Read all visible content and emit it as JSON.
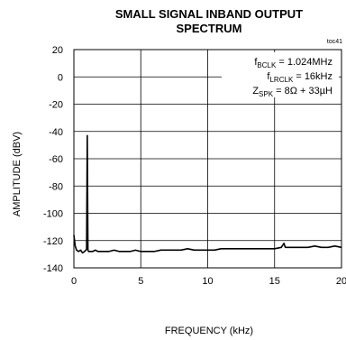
{
  "chart_data": {
    "type": "line",
    "title_line1": "SMALL SIGNAL INBAND OUTPUT",
    "title_line2": "SPECTRUM",
    "chart_id": "toc41",
    "xlabel": "FREQUENCY (kHz)",
    "ylabel": "AMPLITUDE (dBV)",
    "xlim": [
      0,
      20
    ],
    "ylim": [
      -140,
      20
    ],
    "x_ticks": [
      "0",
      "5",
      "10",
      "15",
      "20"
    ],
    "y_ticks": [
      "20",
      "0",
      "-20",
      "-40",
      "-60",
      "-80",
      "-100",
      "-120",
      "-140"
    ],
    "grid": true,
    "annotations": {
      "bclk_main": "f",
      "bclk_sub": "BCLK",
      "bclk_value": " = 1.024MHz",
      "lrclk_main": "f",
      "lrclk_sub": "LRCLK",
      "lrclk_value": " = 16kHz",
      "zspk_main": "Z",
      "zspk_sub": "SPK",
      "zspk_value": " = 8Ω + 33µH"
    },
    "series": [
      {
        "x": [
          0.0,
          0.1,
          0.2,
          0.35,
          0.5,
          0.65,
          0.8,
          0.9,
          0.95,
          1.0,
          1.05,
          1.1,
          1.2,
          1.4,
          1.6,
          1.8,
          2.0,
          2.3,
          2.6,
          3.0,
          3.4,
          3.8,
          4.2,
          4.6,
          5.0,
          5.5,
          6.0,
          6.5,
          7.0,
          7.5,
          8.0,
          8.5,
          9.0,
          9.5,
          10.0,
          10.5,
          11.0,
          11.5,
          12.0,
          12.5,
          13.0,
          13.5,
          14.0,
          14.5,
          15.0,
          15.5,
          15.7,
          15.8,
          16.0,
          16.2,
          16.5,
          17.0,
          17.5,
          18.0,
          18.5,
          19.0,
          19.5,
          20.0
        ],
        "y": [
          -116,
          -124,
          -127,
          -128,
          -127,
          -129,
          -128,
          -127,
          -126,
          -43,
          -127,
          -128,
          -128,
          -128,
          -127,
          -128,
          -128,
          -128,
          -128,
          -127,
          -128,
          -128,
          -128,
          -127,
          -128,
          -128,
          -128,
          -127,
          -127,
          -127,
          -127,
          -126,
          -127,
          -127,
          -127,
          -127,
          -126,
          -126,
          -126,
          -126,
          -126,
          -126,
          -126,
          -126,
          -126,
          -125,
          -122,
          -125,
          -125,
          -125,
          -125,
          -125,
          -125,
          -124,
          -125,
          -125,
          -124,
          -125
        ]
      }
    ]
  }
}
